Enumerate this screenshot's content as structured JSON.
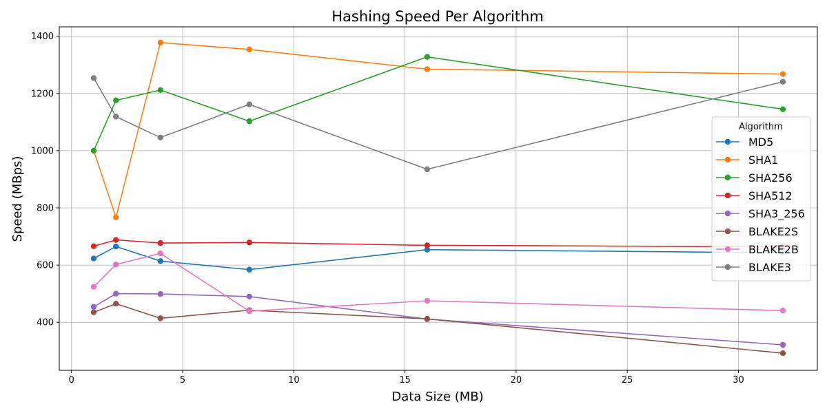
{
  "chart_data": {
    "type": "line",
    "title": "Hashing Speed Per Algorithm",
    "xlabel": "Data Size (MB)",
    "ylabel": "Speed (MBps)",
    "x": [
      1,
      2,
      4,
      8,
      16,
      32
    ],
    "xlim": [
      -0.55,
      33.55
    ],
    "ylim": [
      232,
      1433
    ],
    "xticks": [
      0,
      5,
      10,
      15,
      20,
      25,
      30
    ],
    "yticks": [
      400,
      600,
      800,
      1000,
      1200,
      1400
    ],
    "grid": true,
    "legend": {
      "title": "Algorithm",
      "placement": "right"
    },
    "series": [
      {
        "name": "MD5",
        "color": "#1f77b4",
        "values": [
          623,
          665,
          614,
          584,
          654,
          643
        ]
      },
      {
        "name": "SHA1",
        "color": "#ff7f0e",
        "values": [
          1000,
          767,
          1378,
          1354,
          1285,
          1268
        ]
      },
      {
        "name": "SHA256",
        "color": "#2ca02c",
        "values": [
          1000,
          1176,
          1212,
          1103,
          1328,
          1145
        ]
      },
      {
        "name": "SHA512",
        "color": "#d62728",
        "values": [
          666,
          688,
          677,
          679,
          669,
          664
        ]
      },
      {
        "name": "SHA3_256",
        "color": "#9467bd",
        "values": [
          454,
          500,
          499,
          490,
          411,
          321
        ]
      },
      {
        "name": "BLAKE2S",
        "color": "#8c564b",
        "values": [
          435,
          465,
          414,
          442,
          412,
          292
        ]
      },
      {
        "name": "BLAKE2B",
        "color": "#e377c2",
        "values": [
          524,
          602,
          641,
          439,
          475,
          441
        ]
      },
      {
        "name": "BLAKE3",
        "color": "#7f7f7f",
        "values": [
          1254,
          1119,
          1046,
          1162,
          935,
          1241
        ]
      }
    ]
  }
}
